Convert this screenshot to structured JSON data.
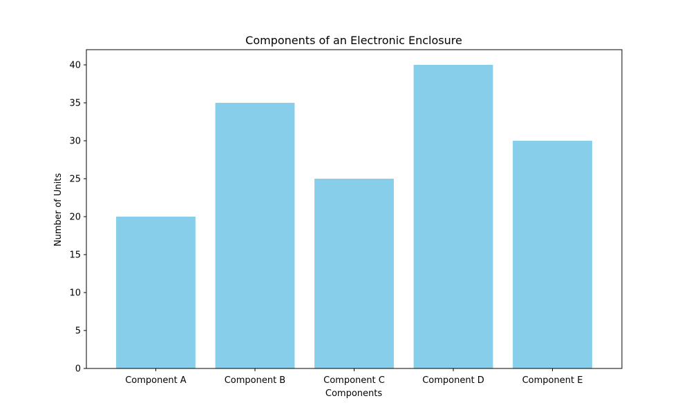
{
  "chart_data": {
    "type": "bar",
    "title": "Components of an Electronic Enclosure",
    "xlabel": "Components",
    "ylabel": "Number of Units",
    "categories": [
      "Component A",
      "Component B",
      "Component C",
      "Component D",
      "Component E"
    ],
    "values": [
      20,
      35,
      25,
      40,
      30
    ],
    "ylim": [
      0,
      42
    ],
    "yticks": [
      0,
      5,
      10,
      15,
      20,
      25,
      30,
      35,
      40
    ],
    "bar_color": "#87CEEB",
    "grid": false,
    "legend": "none"
  }
}
